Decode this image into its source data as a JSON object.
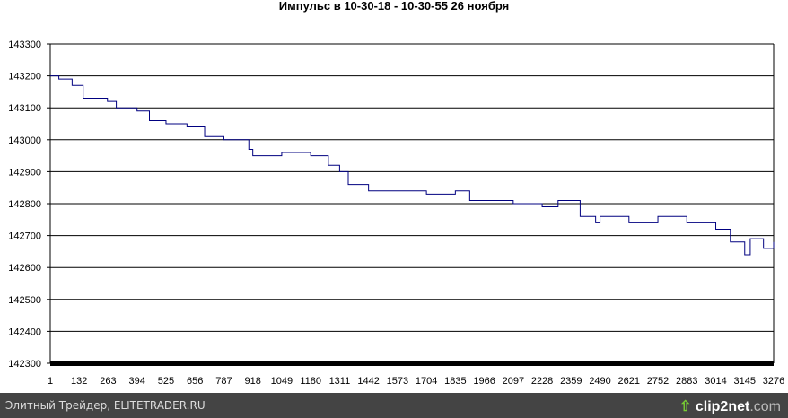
{
  "chart_data": {
    "type": "line",
    "title": "Импульс в 10-30-18 - 10-30-55 26 ноября",
    "xlabel": "",
    "ylabel": "",
    "ylim": [
      142300,
      143300
    ],
    "yticks": [
      143300,
      143200,
      143100,
      143000,
      142900,
      142800,
      142700,
      142600,
      142500,
      142400,
      142300
    ],
    "xlim": [
      1,
      3276
    ],
    "xticks": [
      1,
      132,
      263,
      394,
      525,
      656,
      787,
      918,
      1049,
      1180,
      1311,
      1442,
      1573,
      1704,
      1835,
      1966,
      2097,
      2228,
      2359,
      2490,
      2621,
      2752,
      2883,
      3014,
      3145,
      3276
    ],
    "grid": true,
    "line_color": "#000080",
    "series": [
      {
        "x": [
          1,
          40,
          100,
          150,
          260,
          300,
          394,
          450,
          525,
          620,
          700,
          787,
          900,
          918,
          1049,
          1180,
          1260,
          1311,
          1350,
          1442,
          1573,
          1704,
          1835,
          1900,
          2000,
          2097,
          2228,
          2300,
          2400,
          2470,
          2490,
          2621,
          2752,
          2883,
          3014,
          3080,
          3145,
          3170,
          3230,
          3276
        ],
        "y": [
          143200,
          143190,
          143170,
          143130,
          143120,
          143100,
          143090,
          143060,
          143050,
          143040,
          143010,
          143000,
          142970,
          142950,
          142960,
          142950,
          142920,
          142900,
          142860,
          142840,
          142840,
          142830,
          142840,
          142810,
          142810,
          142800,
          142790,
          142810,
          142760,
          142740,
          142760,
          142740,
          142760,
          142740,
          142720,
          142680,
          142640,
          142690,
          142660,
          142680
        ]
      }
    ]
  },
  "footer": {
    "text": "Элитный Трейдер, ELITETRADER.RU",
    "logo": "clip2net.com"
  }
}
